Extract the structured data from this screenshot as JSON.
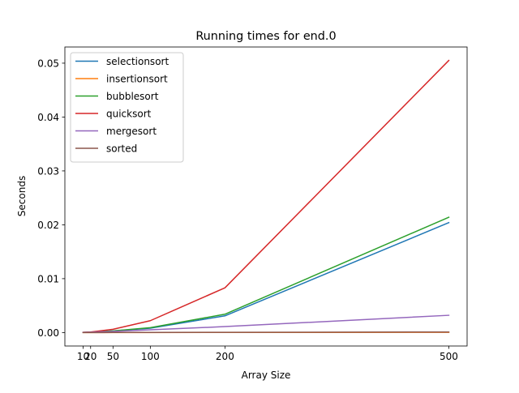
{
  "chart_data": {
    "type": "line",
    "title": "Running times for end.0",
    "xlabel": "Array Size",
    "ylabel": "Seconds",
    "x": [
      10,
      20,
      50,
      100,
      200,
      500
    ],
    "xtick_labels": [
      "10",
      "20",
      "50",
      "100",
      "200",
      "500"
    ],
    "ytick_values": [
      0.0,
      0.01,
      0.02,
      0.03,
      0.04,
      0.05
    ],
    "ytick_labels": [
      "0.00",
      "0.01",
      "0.02",
      "0.03",
      "0.04",
      "0.05"
    ],
    "xlim": [
      -14.5,
      524.5
    ],
    "ylim": [
      -0.0025,
      0.053
    ],
    "grid": false,
    "legend_position": "top-left",
    "series": [
      {
        "name": "selectionsort",
        "color": "#1f77b4",
        "values": [
          2e-05,
          6e-05,
          0.0003,
          0.0008,
          0.0031,
          0.0204
        ]
      },
      {
        "name": "insertionsort",
        "color": "#ff7f0e",
        "values": [
          0.0,
          2e-06,
          4e-06,
          8e-06,
          1.6e-05,
          4e-05
        ]
      },
      {
        "name": "bubblesort",
        "color": "#2ca02c",
        "values": [
          2e-05,
          8e-05,
          0.0003,
          0.0009,
          0.0034,
          0.0214
        ]
      },
      {
        "name": "quicksort",
        "color": "#d62728",
        "values": [
          3e-05,
          0.0001,
          0.0006,
          0.0022,
          0.0083,
          0.0505
        ]
      },
      {
        "name": "mergesort",
        "color": "#9467bd",
        "values": [
          3e-05,
          6e-05,
          0.0002,
          0.0005,
          0.0011,
          0.0032
        ]
      },
      {
        "name": "sorted",
        "color": "#8c564b",
        "values": [
          0.0,
          5e-06,
          1e-05,
          2e-05,
          4e-05,
          0.0001
        ]
      }
    ]
  }
}
